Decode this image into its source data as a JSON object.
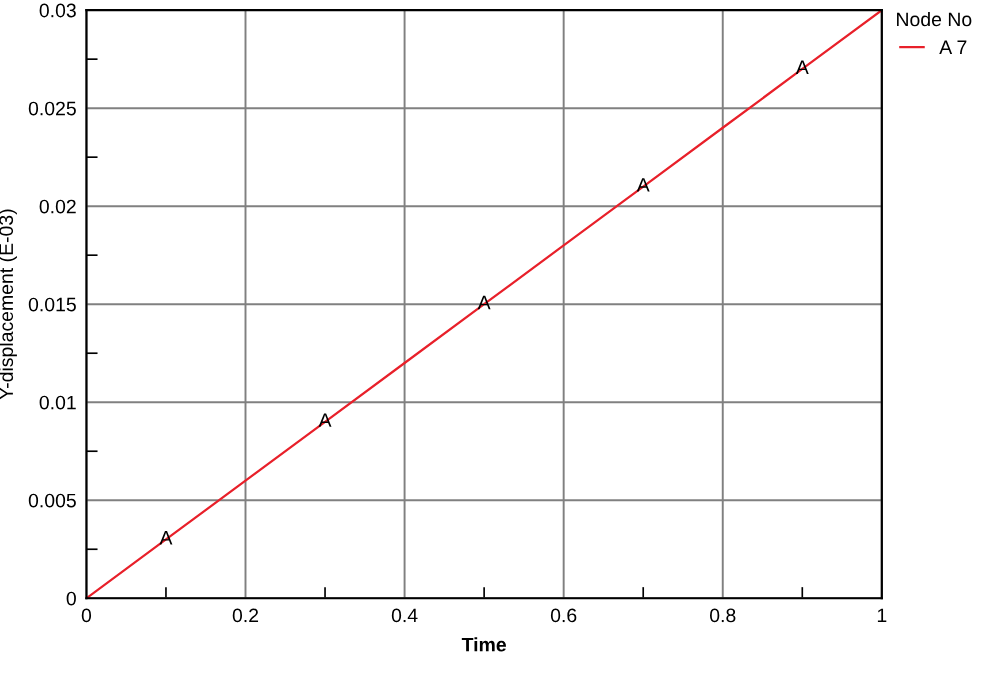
{
  "chart_data": {
    "type": "line",
    "xlabel": "Time",
    "ylabel": "Y-displacement (E-03)",
    "legend_title": "Node No",
    "legend": "top right",
    "x": [
      0,
      0.1,
      0.2,
      0.3,
      0.4,
      0.5,
      0.6,
      0.7,
      0.8,
      0.9,
      1
    ],
    "series": [
      {
        "name": "A 7",
        "color": "#e8202a",
        "values": [
          0,
          0.003,
          0.006,
          0.009,
          0.012,
          0.015,
          0.018,
          0.021,
          0.024,
          0.027,
          0.03
        ]
      }
    ],
    "annotations": [
      {
        "text": "A",
        "x": 0.1,
        "y": 0.003
      },
      {
        "text": "A",
        "x": 0.3,
        "y": 0.009
      },
      {
        "text": "A",
        "x": 0.5,
        "y": 0.015
      },
      {
        "text": "A",
        "x": 0.7,
        "y": 0.021
      },
      {
        "text": "A",
        "x": 0.9,
        "y": 0.027
      }
    ],
    "xlim": [
      0,
      1
    ],
    "ylim": [
      0,
      0.03
    ],
    "xticks": [
      0,
      0.2,
      0.4,
      0.6,
      0.8,
      1
    ],
    "yticks": [
      0,
      0.005,
      0.01,
      0.015,
      0.02,
      0.025,
      0.03
    ],
    "grid": true,
    "line_style": "solid"
  }
}
